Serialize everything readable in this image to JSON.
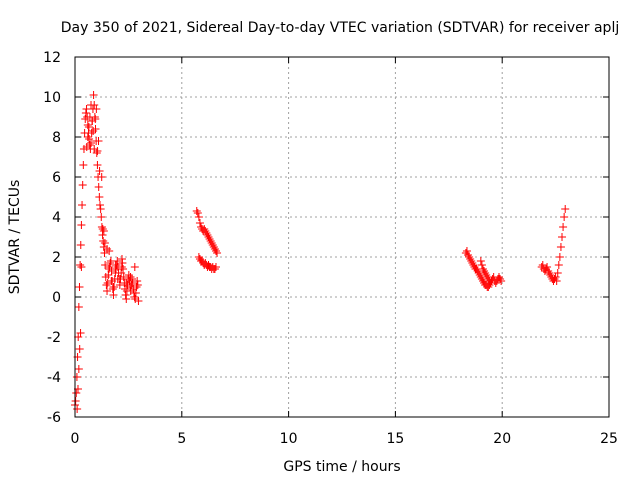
{
  "chart_data": {
    "type": "scatter",
    "title": "Day 350 of 2021, Sidereal Day-to-day VTEC variation (SDTVAR) for receiver aplj",
    "xlabel": "GPS time / hours",
    "ylabel": "SDTVAR / TECUs",
    "xlim": [
      0,
      25
    ],
    "ylim": [
      -6,
      12
    ],
    "xticks": [
      "0",
      "5",
      "10",
      "15",
      "20",
      "25"
    ],
    "yticks": [
      "-6",
      "-4",
      "-2",
      "0",
      "2",
      "4",
      "6",
      "8",
      "10",
      "12"
    ],
    "grid": true,
    "marker": "+",
    "color": "#ff0000",
    "series": [
      {
        "name": "SDTVAR",
        "x": [
          0.0,
          0.03,
          0.06,
          0.09,
          0.12,
          0.15,
          0.18,
          0.21,
          0.24,
          0.27,
          0.3,
          0.33,
          0.36,
          0.39,
          0.42,
          0.45,
          0.48,
          0.51,
          0.54,
          0.57,
          0.6,
          0.63,
          0.66,
          0.69,
          0.72,
          0.75,
          0.78,
          0.81,
          0.84,
          0.87,
          0.9,
          0.93,
          0.96,
          0.99,
          1.02,
          1.05,
          1.08,
          1.11,
          1.14,
          1.17,
          1.2,
          1.23,
          1.26,
          1.29,
          1.32,
          1.35,
          1.38,
          1.41,
          1.44,
          1.47,
          1.5,
          1.53,
          1.56,
          1.59,
          1.62,
          1.65,
          1.68,
          1.71,
          1.74,
          1.77,
          1.8,
          1.83,
          1.86,
          1.89,
          1.92,
          1.95,
          1.98,
          2.01,
          2.04,
          2.07,
          2.1,
          2.13,
          2.16,
          2.19,
          2.22,
          2.25,
          2.28,
          2.31,
          2.34,
          2.37,
          2.4,
          2.43,
          2.46,
          2.49,
          2.52,
          2.55,
          2.58,
          2.61,
          2.64,
          2.67,
          2.7,
          2.73,
          2.76,
          2.79,
          2.82,
          2.85,
          2.88,
          2.91,
          2.94,
          2.97,
          0.1,
          0.14,
          0.18,
          0.22,
          0.26,
          0.3,
          0.55,
          0.6,
          0.65,
          0.7,
          0.75,
          0.8,
          0.85,
          0.9,
          0.95,
          1.0,
          1.05,
          1.1,
          1.15,
          1.25,
          1.3,
          1.35,
          1.4,
          1.5,
          1.6,
          1.7,
          1.8,
          1.9,
          2.0,
          2.2,
          2.4,
          2.6,
          2.8,
          5.7,
          5.75,
          5.8,
          5.85,
          5.9,
          5.95,
          6.0,
          6.05,
          6.1,
          6.15,
          6.2,
          6.25,
          6.3,
          6.35,
          6.4,
          6.45,
          6.5,
          6.55,
          6.6,
          6.65,
          5.8,
          5.85,
          5.9,
          5.95,
          6.0,
          6.05,
          6.1,
          6.15,
          6.2,
          6.25,
          6.3,
          6.35,
          6.4,
          6.45,
          6.5,
          6.55,
          6.6,
          18.3,
          18.35,
          18.4,
          18.45,
          18.5,
          18.55,
          18.6,
          18.65,
          18.7,
          18.75,
          18.8,
          18.85,
          18.9,
          18.95,
          19.0,
          19.05,
          19.1,
          19.15,
          19.2,
          19.25,
          19.3,
          19.35,
          19.4,
          19.45,
          19.5,
          19.55,
          19.6,
          19.65,
          19.7,
          19.75,
          19.8,
          19.85,
          19.9,
          19.95,
          19.0,
          19.05,
          19.1,
          19.15,
          19.2,
          19.25,
          19.3,
          19.35,
          19.4,
          21.85,
          21.9,
          21.95,
          22.0,
          22.05,
          22.1,
          22.15,
          22.2,
          22.25,
          22.3,
          22.35,
          22.4,
          22.45,
          22.5,
          22.55,
          22.6,
          22.65,
          22.7,
          22.75,
          22.8,
          22.85,
          22.9,
          22.95
        ],
        "y": [
          -5.4,
          -5.2,
          -4.8,
          -4.0,
          -3.0,
          -2.0,
          -0.5,
          0.5,
          1.6,
          2.6,
          3.6,
          4.6,
          5.6,
          6.6,
          7.4,
          8.2,
          8.9,
          9.2,
          9.4,
          9.0,
          8.6,
          8.2,
          7.9,
          7.6,
          7.4,
          7.7,
          8.2,
          8.8,
          9.4,
          10.1,
          9.6,
          9.0,
          8.4,
          7.8,
          7.2,
          6.6,
          6.0,
          5.5,
          5.0,
          4.6,
          4.4,
          4.0,
          3.5,
          3.1,
          2.8,
          2.5,
          2.2,
          1.6,
          1.0,
          0.6,
          0.3,
          0.7,
          1.1,
          1.4,
          1.5,
          1.7,
          1.8,
          1.3,
          0.8,
          0.4,
          0.1,
          0.5,
          0.9,
          1.2,
          1.4,
          1.6,
          1.8,
          1.5,
          1.2,
          0.9,
          0.6,
          0.9,
          1.2,
          1.5,
          1.7,
          1.4,
          1.0,
          0.7,
          0.4,
          0.1,
          -0.1,
          0.3,
          0.6,
          0.9,
          1.1,
          0.8,
          0.5,
          0.3,
          0.6,
          0.9,
          0.7,
          0.4,
          0.2,
          0.0,
          -0.1,
          0.2,
          0.5,
          0.8,
          0.6,
          -0.2,
          -5.6,
          -4.6,
          -3.6,
          -2.6,
          -1.8,
          1.5,
          7.5,
          8.0,
          8.5,
          9.0,
          9.6,
          8.8,
          8.3,
          7.4,
          8.9,
          9.4,
          7.3,
          7.8,
          6.3,
          6.0,
          3.4,
          3.3,
          2.7,
          2.4,
          2.3,
          0.8,
          0.5,
          1.6,
          0.9,
          1.9,
          0.7,
          1.0,
          1.5,
          4.3,
          4.2,
          4.0,
          3.7,
          3.5,
          3.4,
          3.3,
          3.4,
          3.3,
          3.2,
          3.1,
          3.0,
          2.9,
          2.8,
          2.7,
          2.6,
          2.5,
          2.4,
          2.3,
          2.2,
          2.0,
          1.9,
          1.8,
          1.8,
          1.7,
          1.6,
          1.7,
          1.6,
          1.5,
          1.6,
          1.5,
          1.5,
          1.4,
          1.5,
          1.4,
          1.4,
          1.5,
          2.2,
          2.3,
          2.1,
          2.0,
          1.9,
          1.8,
          1.7,
          1.6,
          1.5,
          1.4,
          1.4,
          1.3,
          1.2,
          1.1,
          1.0,
          0.9,
          0.8,
          0.7,
          0.6,
          0.6,
          0.5,
          0.5,
          0.6,
          0.7,
          0.8,
          0.9,
          1.0,
          0.8,
          0.7,
          0.8,
          0.9,
          1.0,
          0.9,
          0.8,
          1.8,
          1.6,
          1.4,
          1.3,
          1.2,
          1.1,
          1.0,
          0.9,
          0.8,
          1.5,
          1.6,
          1.4,
          1.3,
          1.4,
          1.5,
          1.3,
          1.2,
          1.1,
          1.0,
          0.9,
          0.8,
          0.9,
          1.0,
          0.8,
          1.2,
          1.6,
          2.0,
          2.5,
          3.0,
          3.5,
          4.0,
          4.4
        ]
      }
    ]
  }
}
